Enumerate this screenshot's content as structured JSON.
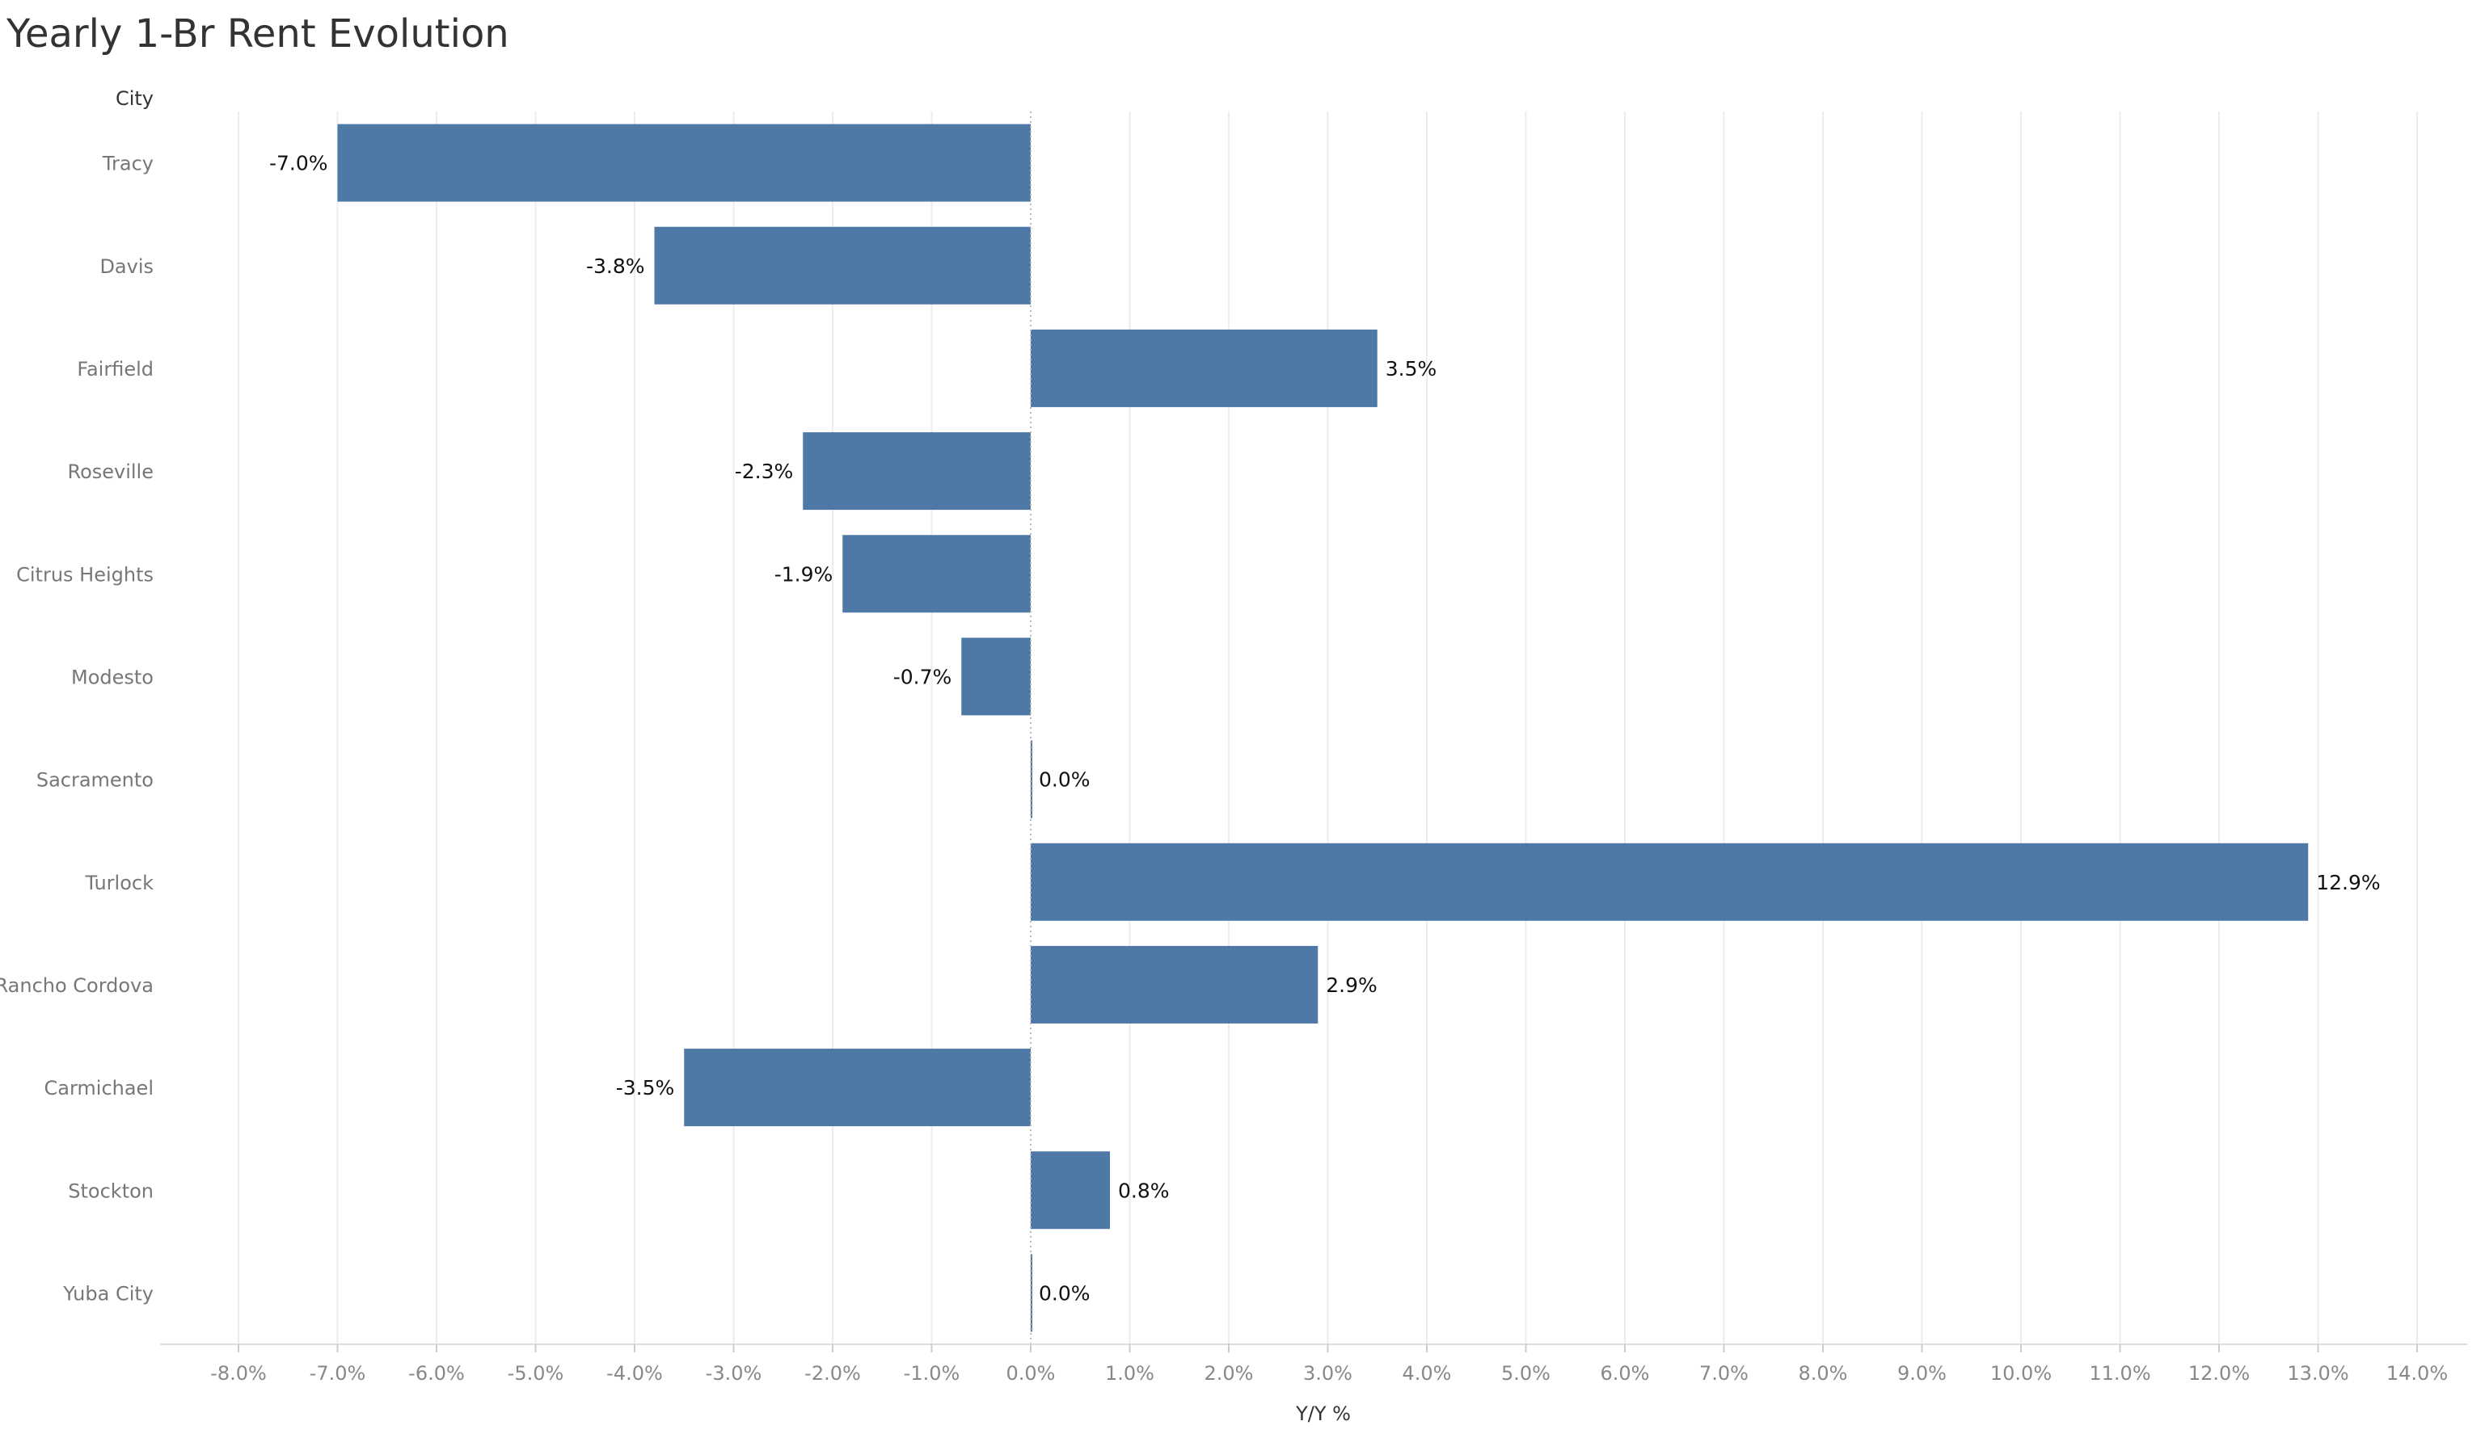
{
  "chart_data": {
    "type": "bar",
    "orientation": "horizontal",
    "title": "Yearly 1-Br Rent Evolution",
    "category_header": "City",
    "xlabel": "Y/Y %",
    "categories": [
      "Tracy",
      "Davis",
      "Fairfield",
      "Roseville",
      "Citrus Heights",
      "Modesto",
      "Sacramento",
      "Turlock",
      "Rancho Cordova",
      "Carmichael",
      "Stockton",
      "Yuba City"
    ],
    "values": [
      -7.0,
      -3.8,
      3.5,
      -2.3,
      -1.9,
      -0.7,
      0.0,
      12.9,
      2.9,
      -3.5,
      0.8,
      0.0
    ],
    "data_labels": [
      "-7.0%",
      "-3.8%",
      "3.5%",
      "-2.3%",
      "-1.9%",
      "-0.7%",
      "0.0%",
      "12.9%",
      "2.9%",
      "-3.5%",
      "0.8%",
      "0.0%"
    ],
    "xlim": [
      -8.8,
      14.6
    ],
    "xticks": [
      -8,
      -7,
      -6,
      -5,
      -4,
      -3,
      -2,
      -1,
      0,
      1,
      2,
      3,
      4,
      5,
      6,
      7,
      8,
      9,
      10,
      11,
      12,
      13,
      14
    ],
    "xtick_labels": [
      "-8.0%",
      "-7.0%",
      "-6.0%",
      "-5.0%",
      "-4.0%",
      "-3.0%",
      "-2.0%",
      "-1.0%",
      "0.0%",
      "1.0%",
      "2.0%",
      "3.0%",
      "4.0%",
      "5.0%",
      "6.0%",
      "7.0%",
      "8.0%",
      "9.0%",
      "10.0%",
      "11.0%",
      "12.0%",
      "13.0%",
      "14.0%"
    ],
    "grid": true,
    "legend": "none",
    "bar_color": "#4e79a7"
  }
}
